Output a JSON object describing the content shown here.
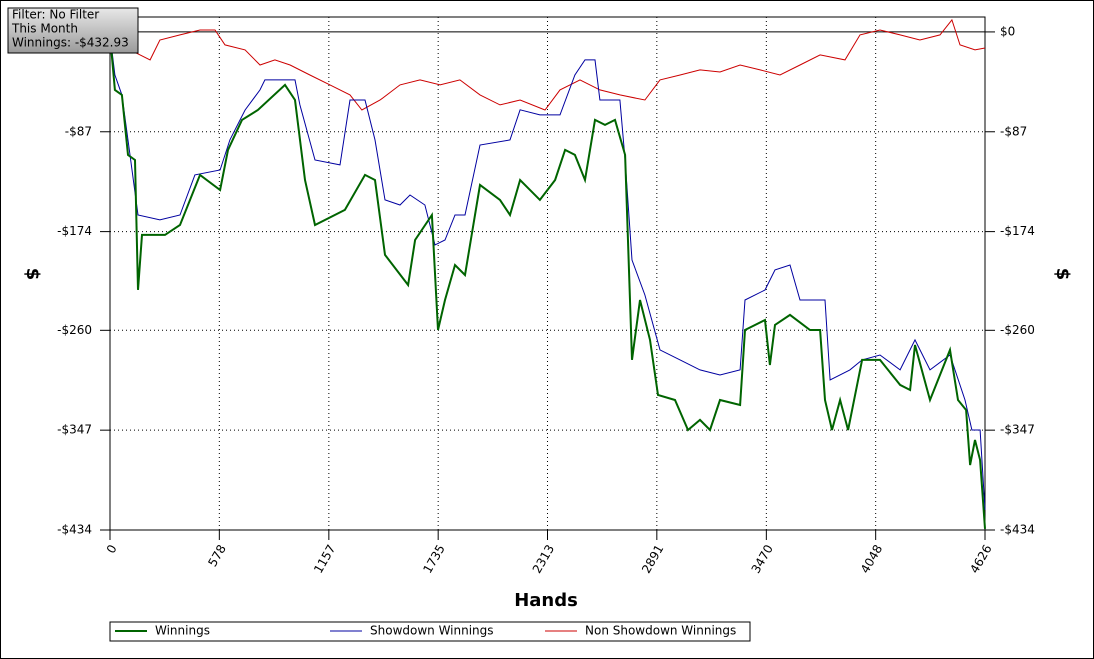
{
  "chart_data": {
    "type": "line",
    "annotations": [
      "Filter: No Filter",
      "This Month",
      "Winnings: -$432.93"
    ],
    "xlabel": "Hands",
    "ylabel": "$",
    "xlim": [
      0,
      4626
    ],
    "xticks": [
      0,
      578,
      1157,
      1735,
      2313,
      2891,
      3470,
      4048,
      4626
    ],
    "ylim": [
      -434,
      13
    ],
    "yticks": [
      {
        "value": 0,
        "label": "$0"
      },
      {
        "value": -87,
        "label": "-$87"
      },
      {
        "value": -174,
        "label": "-$174"
      },
      {
        "value": -260,
        "label": "-$260"
      },
      {
        "value": -347,
        "label": "-$347"
      },
      {
        "value": -434,
        "label": "-$434"
      }
    ],
    "grid": true,
    "legend": "bottom",
    "series": [
      {
        "name": "Winnings",
        "color": "#006400",
        "x": [
          0,
          26,
          63,
          95,
          132,
          148,
          169,
          291,
          370,
          476,
          582,
          624,
          698,
          782,
          925,
          978,
          1031,
          1084,
          1242,
          1348,
          1401,
          1454,
          1576,
          1613,
          1702,
          1734,
          1771,
          1824,
          1877,
          1956,
          2062,
          2115,
          2168,
          2273,
          2353,
          2406,
          2458,
          2511,
          2564,
          2617,
          2670,
          2723,
          2760,
          2802,
          2855,
          2897,
          2987,
          3056,
          3119,
          3172,
          3225,
          3331,
          3357,
          3463,
          3489,
          3516,
          3595,
          3701,
          3754,
          3780,
          3817,
          3860,
          3902,
          3976,
          4071,
          4177,
          4230,
          4256,
          4335,
          4441,
          4483,
          4526,
          4547,
          4573,
          4600,
          4626
        ],
        "values": [
          -2.6,
          -50.5,
          -54.9,
          -107.2,
          -111.6,
          -224.8,
          -176.9,
          -176.9,
          -168.2,
          -124.6,
          -137.7,
          -102.8,
          -76.7,
          -68.0,
          -46.2,
          -59.3,
          -129.0,
          -168.2,
          -155.1,
          -124.6,
          -129.0,
          -194.3,
          -220.5,
          -181.3,
          -159.5,
          -259.7,
          -233.6,
          -203.1,
          -211.8,
          -133.3,
          -146.4,
          -159.5,
          -129.0,
          -146.4,
          -129.0,
          -102.8,
          -107.2,
          -129.0,
          -76.7,
          -81.0,
          -76.7,
          -107.2,
          -285.8,
          -233.6,
          -268.4,
          -316.4,
          -320.7,
          -346.9,
          -338.1,
          -346.9,
          -320.7,
          -325.1,
          -259.7,
          -251.0,
          -290.2,
          -255.3,
          -246.6,
          -259.7,
          -259.7,
          -320.7,
          -346.9,
          -320.7,
          -346.9,
          -285.8,
          -285.8,
          -307.6,
          -312.0,
          -272.8,
          -320.7,
          -277.1,
          -320.7,
          -329.4,
          -377.4,
          -355.6,
          -373.0,
          -432.93
        ]
      },
      {
        "name": "Showdown Winnings",
        "color": "#0000a0",
        "x": [
          0,
          26,
          63,
          106,
          148,
          264,
          370,
          449,
          582,
          634,
          714,
          793,
          819,
          978,
          1004,
          1084,
          1216,
          1269,
          1348,
          1401,
          1454,
          1533,
          1586,
          1665,
          1718,
          1771,
          1824,
          1877,
          1956,
          2115,
          2168,
          2273,
          2379,
          2458,
          2511,
          2564,
          2590,
          2696,
          2723,
          2760,
          2828,
          2908,
          3014,
          3119,
          3225,
          3331,
          3357,
          3463,
          3516,
          3595,
          3648,
          3780,
          3807,
          3912,
          3976,
          4071,
          4177,
          4256,
          4335,
          4441,
          4520,
          4557,
          4600,
          4626
        ],
        "values": [
          -2.6,
          -37.5,
          -54.9,
          -107.2,
          -159.5,
          -163.8,
          -159.5,
          -124.6,
          -120.3,
          -94.1,
          -68.0,
          -50.5,
          -41.8,
          -41.8,
          -63.6,
          -111.6,
          -115.9,
          -59.3,
          -59.3,
          -94.1,
          -146.4,
          -150.8,
          -142.1,
          -150.8,
          -185.6,
          -181.3,
          -159.5,
          -159.5,
          -98.5,
          -94.1,
          -67.9,
          -72.3,
          -72.3,
          -37.5,
          -24.4,
          -24.4,
          -59.3,
          -59.3,
          -111.6,
          -198.7,
          -229.2,
          -277.1,
          -285.8,
          -294.5,
          -298.9,
          -294.5,
          -233.6,
          -224.9,
          -207.4,
          -203.1,
          -233.6,
          -233.6,
          -303.3,
          -294.5,
          -285.8,
          -281.5,
          -294.5,
          -268.4,
          -294.5,
          -281.5,
          -320.7,
          -346.9,
          -346.9,
          -416.5
        ]
      },
      {
        "name": "Non Showdown Winnings",
        "color": "#cc0000",
        "x": [
          0,
          53,
          159,
          212,
          264,
          370,
          476,
          555,
          608,
          714,
          793,
          872,
          952,
          1057,
          1163,
          1269,
          1332,
          1428,
          1533,
          1639,
          1745,
          1850,
          1956,
          2062,
          2168,
          2300,
          2379,
          2485,
          2590,
          2696,
          2828,
          2908,
          3014,
          3119,
          3225,
          3331,
          3437,
          3542,
          3648,
          3754,
          3886,
          3965,
          4071,
          4177,
          4282,
          4388,
          4451,
          4494,
          4573,
          4626
        ],
        "values": [
          -2.6,
          -11.3,
          -20.0,
          -24.4,
          -7.0,
          -2.6,
          1.7,
          1.7,
          -11.3,
          -15.7,
          -28.8,
          -24.4,
          -28.8,
          -37.5,
          -46.2,
          -54.9,
          -68.0,
          -59.3,
          -46.2,
          -41.8,
          -46.2,
          -41.8,
          -54.9,
          -63.6,
          -59.3,
          -68.0,
          -50.5,
          -41.8,
          -50.5,
          -54.9,
          -59.3,
          -41.8,
          -37.5,
          -33.1,
          -34.9,
          -28.8,
          -33.1,
          -37.5,
          -28.8,
          -20.0,
          -24.4,
          -2.6,
          1.7,
          -2.6,
          -7.0,
          -2.6,
          10.5,
          -11.3,
          -15.7,
          -14.0
        ]
      }
    ]
  }
}
